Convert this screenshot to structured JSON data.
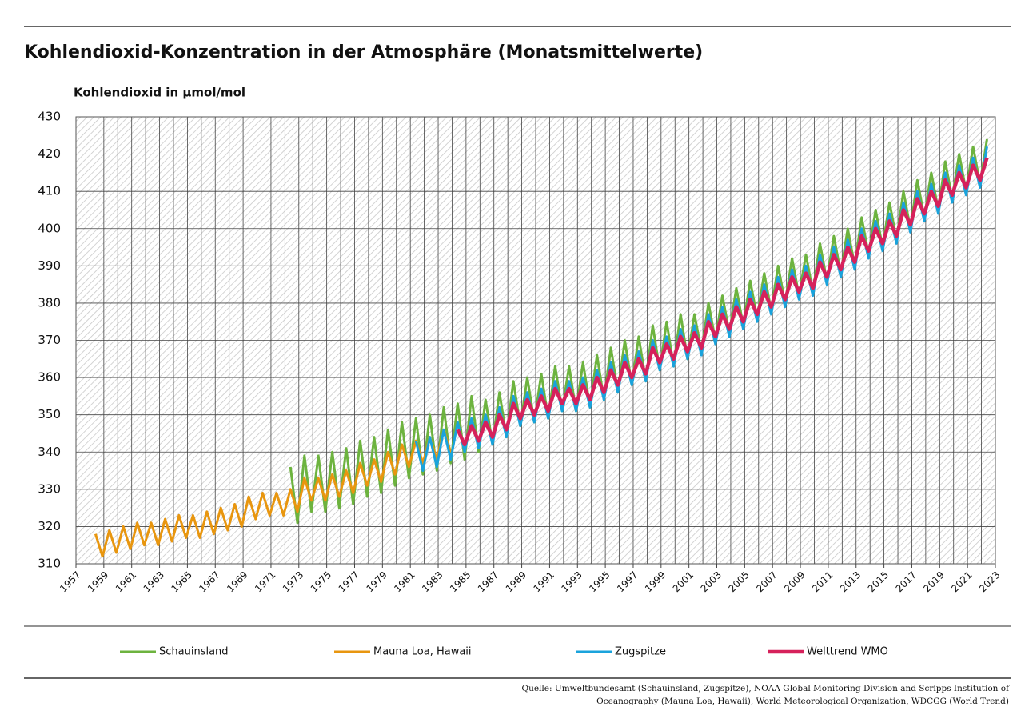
{
  "chart_data": {
    "type": "line",
    "title": "Kohlendioxid-Konzentration in der Atmosphäre (Monatsmittelwerte)",
    "y_label": "Kohlendioxid in µmol/mol",
    "source": [
      "Quelle: Umweltbundesamt (Schauinsland, Zugspitze), NOAA Global Monitoring Division and Scripps Institution of",
      "Oceanography  (Mauna Loa, Hawaii), World Meteorological Organization, WDCGG (World Trend)"
    ],
    "xlim": [
      1957,
      2023
    ],
    "xticks": [
      1957,
      1959,
      1961,
      1963,
      1965,
      1967,
      1969,
      1971,
      1973,
      1975,
      1977,
      1979,
      1981,
      1983,
      1985,
      1987,
      1989,
      1991,
      1993,
      1995,
      1997,
      1999,
      2001,
      2003,
      2005,
      2007,
      2009,
      2011,
      2013,
      2015,
      2017,
      2019,
      2021,
      2023
    ],
    "ylim": [
      310,
      430
    ],
    "yticks": [
      310,
      320,
      330,
      340,
      350,
      360,
      370,
      380,
      390,
      400,
      410,
      420,
      430
    ],
    "grid": true,
    "x": [
      1958.4,
      1958.9,
      1959.4,
      1959.9,
      1960.4,
      1960.9,
      1961.4,
      1961.9,
      1962.4,
      1962.9,
      1963.4,
      1963.9,
      1964.4,
      1964.9,
      1965.4,
      1965.9,
      1966.4,
      1966.9,
      1967.4,
      1967.9,
      1968.4,
      1968.9,
      1969.4,
      1969.9,
      1970.4,
      1970.9,
      1971.4,
      1971.9,
      1972.4,
      1972.9,
      1973.4,
      1973.9,
      1974.4,
      1974.9,
      1975.4,
      1975.9,
      1976.4,
      1976.9,
      1977.4,
      1977.9,
      1978.4,
      1978.9,
      1979.4,
      1979.9,
      1980.4,
      1980.9,
      1981.4,
      1981.9,
      1982.4,
      1982.9,
      1983.4,
      1983.9,
      1984.4,
      1984.9,
      1985.4,
      1985.9,
      1986.4,
      1986.9,
      1987.4,
      1987.9,
      1988.4,
      1988.9,
      1989.4,
      1989.9,
      1990.4,
      1990.9,
      1991.4,
      1991.9,
      1992.4,
      1992.9,
      1993.4,
      1993.9,
      1994.4,
      1994.9,
      1995.4,
      1995.9,
      1996.4,
      1996.9,
      1997.4,
      1997.9,
      1998.4,
      1998.9,
      1999.4,
      1999.9,
      2000.4,
      2000.9,
      2001.4,
      2001.9,
      2002.4,
      2002.9,
      2003.4,
      2003.9,
      2004.4,
      2004.9,
      2005.4,
      2005.9,
      2006.4,
      2006.9,
      2007.4,
      2007.9,
      2008.4,
      2008.9,
      2009.4,
      2009.9,
      2010.4,
      2010.9,
      2011.4,
      2011.9,
      2012.4,
      2012.9,
      2013.4,
      2013.9,
      2014.4,
      2014.9,
      2015.4,
      2015.9,
      2016.4,
      2016.9,
      2017.4,
      2017.9,
      2018.4,
      2018.9,
      2019.4,
      2019.9,
      2020.4,
      2020.9,
      2021.4,
      2021.9,
      2022.4
    ],
    "series": [
      {
        "name": "Schauinsland",
        "color": "#6db33f",
        "width": 3,
        "values": [
          null,
          null,
          null,
          null,
          null,
          null,
          null,
          null,
          null,
          null,
          null,
          null,
          null,
          null,
          null,
          null,
          null,
          null,
          null,
          null,
          null,
          null,
          null,
          null,
          null,
          null,
          null,
          null,
          336,
          321,
          339,
          324,
          339,
          324,
          340,
          325,
          341,
          326,
          343,
          328,
          344,
          329,
          346,
          331,
          348,
          333,
          349,
          334,
          350,
          335,
          352,
          337,
          353,
          338,
          355,
          340,
          354,
          342,
          356,
          344,
          359,
          347,
          360,
          348,
          361,
          349,
          363,
          351,
          363,
          351,
          364,
          352,
          366,
          354,
          368,
          356,
          370,
          358,
          371,
          359,
          374,
          362,
          375,
          363,
          377,
          365,
          377,
          367,
          380,
          370,
          382,
          372,
          384,
          374,
          386,
          376,
          388,
          378,
          390,
          380,
          392,
          382,
          393,
          383,
          396,
          386,
          398,
          388,
          400,
          390,
          403,
          393,
          405,
          395,
          407,
          397,
          410,
          400,
          413,
          403,
          415,
          405,
          418,
          408,
          420,
          410,
          422,
          412,
          424
        ]
      },
      {
        "name": "Mauna Loa, Hawaii",
        "color": "#e8960f",
        "width": 3,
        "values": [
          318,
          312,
          319,
          313,
          320,
          314,
          321,
          315,
          321,
          315,
          322,
          316,
          323,
          317,
          323,
          317,
          324,
          318,
          325,
          319,
          326,
          320,
          328,
          322,
          329,
          323,
          329,
          323,
          330,
          324,
          333,
          327,
          333,
          327,
          334,
          328,
          335,
          329,
          337,
          331,
          338,
          332,
          340,
          334,
          342,
          336,
          343,
          337,
          344,
          338,
          346,
          340,
          null,
          null,
          null,
          null,
          null,
          null,
          null,
          null,
          null,
          null,
          null,
          null,
          null,
          null,
          null,
          null,
          null,
          null,
          null,
          null,
          null,
          null,
          null,
          null,
          null,
          null,
          null,
          null,
          null,
          null,
          null,
          null,
          null,
          null,
          null,
          null,
          null,
          null,
          null,
          null,
          null,
          null,
          null,
          null,
          null,
          null,
          null,
          null,
          null,
          null,
          null,
          null,
          null,
          null,
          null,
          null,
          null,
          null,
          null,
          null,
          null,
          null,
          null,
          null,
          null,
          null,
          null,
          null,
          null,
          null,
          null,
          null,
          null,
          null,
          null,
          null,
          null
        ]
      },
      {
        "name": "Zugspitze",
        "color": "#1aa3dc",
        "width": 3,
        "values": [
          null,
          null,
          null,
          null,
          null,
          null,
          null,
          null,
          null,
          null,
          null,
          null,
          null,
          null,
          null,
          null,
          null,
          null,
          null,
          null,
          null,
          null,
          null,
          null,
          null,
          null,
          null,
          null,
          null,
          null,
          null,
          null,
          null,
          null,
          null,
          null,
          null,
          null,
          null,
          null,
          null,
          null,
          null,
          null,
          null,
          null,
          343,
          335,
          344,
          336,
          346,
          338,
          348,
          340,
          349,
          341,
          350,
          342,
          352,
          344,
          355,
          347,
          356,
          348,
          357,
          349,
          359,
          351,
          359,
          351,
          360,
          352,
          362,
          354,
          364,
          356,
          366,
          358,
          367,
          359,
          370,
          362,
          371,
          363,
          373,
          365,
          374,
          366,
          377,
          369,
          379,
          371,
          381,
          373,
          383,
          375,
          385,
          377,
          387,
          379,
          389,
          381,
          390,
          382,
          393,
          385,
          395,
          387,
          397,
          389,
          400,
          392,
          402,
          394,
          404,
          396,
          407,
          399,
          410,
          402,
          412,
          404,
          415,
          407,
          417,
          409,
          419,
          411,
          422
        ]
      },
      {
        "name": "Welttrend WMO",
        "color": "#d6215b",
        "width": 4.5,
        "values": [
          null,
          null,
          null,
          null,
          null,
          null,
          null,
          null,
          null,
          null,
          null,
          null,
          null,
          null,
          null,
          null,
          null,
          null,
          null,
          null,
          null,
          null,
          null,
          null,
          null,
          null,
          null,
          null,
          null,
          null,
          null,
          null,
          null,
          null,
          null,
          null,
          null,
          null,
          null,
          null,
          null,
          null,
          null,
          null,
          null,
          null,
          null,
          null,
          null,
          null,
          null,
          null,
          346,
          342,
          347,
          343,
          348,
          344,
          350,
          346,
          353,
          349,
          354,
          350,
          355,
          351,
          357,
          353,
          357,
          353,
          358,
          354,
          360,
          356,
          362,
          358,
          364,
          360,
          365,
          361,
          368,
          364,
          369,
          365,
          371,
          367,
          372,
          368,
          375,
          371,
          377,
          373,
          379,
          375,
          381,
          377,
          383,
          379,
          385,
          381,
          387,
          383,
          388,
          384,
          391,
          387,
          393,
          389,
          395,
          391,
          398,
          394,
          400,
          396,
          402,
          398,
          405,
          401,
          408,
          404,
          410,
          406,
          413,
          409,
          415,
          411,
          417,
          413,
          419
        ]
      }
    ]
  }
}
